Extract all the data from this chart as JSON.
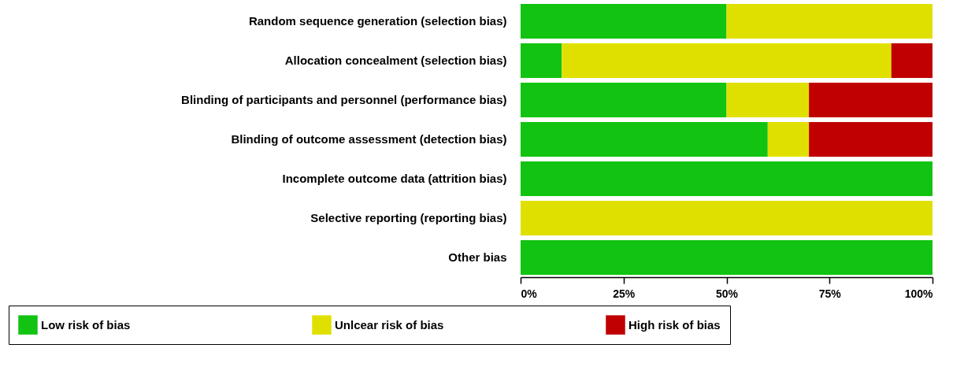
{
  "chart_data": {
    "type": "bar",
    "orientation": "horizontal",
    "stacked": true,
    "categories": [
      "Random sequence generation (selection bias)",
      "Allocation concealment (selection bias)",
      "Blinding of participants and personnel (performance bias)",
      "Blinding of outcome assessment (detection bias)",
      "Incomplete outcome data (attrition bias)",
      "Selective reporting (reporting bias)",
      "Other bias"
    ],
    "series": [
      {
        "name": "Low risk of bias",
        "color": "#12c312",
        "values": [
          50,
          10,
          50,
          60,
          100,
          0,
          100
        ]
      },
      {
        "name": "Unlcear risk of bias",
        "color": "#e0e000",
        "values": [
          50,
          80,
          20,
          10,
          0,
          100,
          0
        ]
      },
      {
        "name": "High risk of bias",
        "color": "#c00000",
        "values": [
          0,
          10,
          30,
          30,
          0,
          0,
          0
        ]
      }
    ],
    "xlim": [
      0,
      100
    ],
    "xticks": [
      {
        "value": 0,
        "label": "0%"
      },
      {
        "value": 25,
        "label": "25%"
      },
      {
        "value": 50,
        "label": "50%"
      },
      {
        "value": 75,
        "label": "75%"
      },
      {
        "value": 100,
        "label": "100%"
      }
    ],
    "grid": false,
    "legend": "bottom"
  }
}
